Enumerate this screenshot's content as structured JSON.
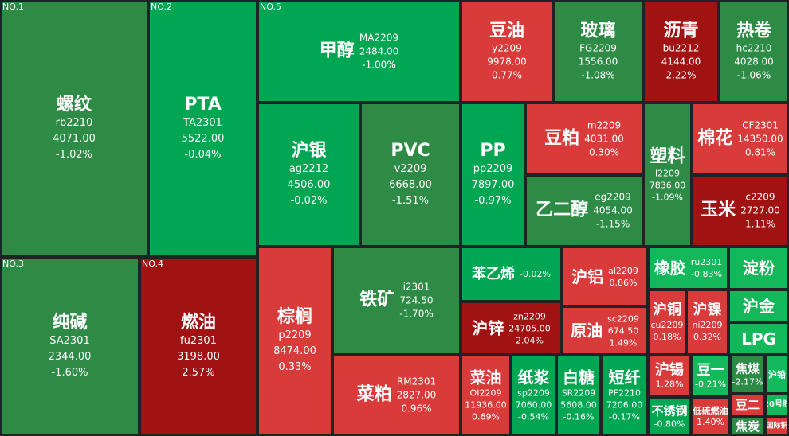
{
  "colors": {
    "up": "#d93b3b",
    "up_strong": "#a11212",
    "down": "#2e8b46",
    "down_bright": "#00a651",
    "down_light": "#12b85a",
    "background": "#1f2326"
  },
  "tiles": [
    {
      "rank": "NO.1",
      "name": "螺纹",
      "code": "rb2210",
      "price": "4071.00",
      "change": "-1.02%"
    },
    {
      "rank": "NO.2",
      "name": "PTA",
      "code": "TA2301",
      "price": "5522.00",
      "change": "-0.04%"
    },
    {
      "rank": "NO.3",
      "name": "纯碱",
      "code": "SA2301",
      "price": "2344.00",
      "change": "-1.60%"
    },
    {
      "rank": "NO.4",
      "name": "燃油",
      "code": "fu2301",
      "price": "3198.00",
      "change": "2.57%"
    },
    {
      "rank": "NO.5",
      "name": "甲醇",
      "code": "MA2209",
      "price": "2484.00",
      "change": "-1.00%"
    },
    {
      "name": "沪银",
      "code": "ag2212",
      "price": "4506.00",
      "change": "-0.02%"
    },
    {
      "name": "PVC",
      "code": "v2209",
      "price": "6668.00",
      "change": "-1.51%"
    },
    {
      "name": "PP",
      "code": "pp2209",
      "price": "7897.00",
      "change": "-0.97%"
    },
    {
      "name": "豆油",
      "code": "y2209",
      "price": "9978.00",
      "change": "0.77%"
    },
    {
      "name": "玻璃",
      "code": "FG2209",
      "price": "1556.00",
      "change": "-1.08%"
    },
    {
      "name": "沥青",
      "code": "bu2212",
      "price": "4144.00",
      "change": "2.22%"
    },
    {
      "name": "热卷",
      "code": "hc2210",
      "price": "4028.00",
      "change": "-1.06%"
    },
    {
      "name": "豆粕",
      "code": "m2209",
      "price": "4031.00",
      "change": "0.30%"
    },
    {
      "name": "塑料",
      "code": "l2209",
      "price": "7836.00",
      "change": "-1.09%"
    },
    {
      "name": "棉花",
      "code": "CF2301",
      "price": "14350.00",
      "change": "0.81%"
    },
    {
      "name": "乙二醇",
      "code": "eg2209",
      "price": "4054.00",
      "change": "-1.15%"
    },
    {
      "name": "玉米",
      "code": "c2209",
      "price": "2727.00",
      "change": "1.11%"
    },
    {
      "name": "棕榈",
      "code": "p2209",
      "price": "8474.00",
      "change": "0.33%"
    },
    {
      "name": "铁矿",
      "code": "i2301",
      "price": "724.50",
      "change": "-1.70%"
    },
    {
      "name": "菜粕",
      "code": "RM2301",
      "price": "2827.00",
      "change": "0.96%"
    },
    {
      "name": "苯乙烯",
      "change": "-0.02%"
    },
    {
      "name": "沪铝",
      "code": "al2209",
      "change": "0.86%"
    },
    {
      "name": "橡胶",
      "code": "ru2301",
      "change": "-0.83%"
    },
    {
      "name": "淀粉"
    },
    {
      "name": "沪锌",
      "code": "zn2209",
      "price": "24705.00",
      "change": "2.04%"
    },
    {
      "name": "原油",
      "code": "sc2209",
      "price": "674.50",
      "change": "1.49%"
    },
    {
      "name": "沪铜",
      "code": "cu2209",
      "change": "0.18%"
    },
    {
      "name": "沪镍",
      "code": "ni2209",
      "change": "0.32%"
    },
    {
      "name": "沪金"
    },
    {
      "name": "LPG"
    },
    {
      "name": "菜油",
      "code": "OI2209",
      "price": "11936.00",
      "change": "0.69%"
    },
    {
      "name": "纸浆",
      "code": "sp2209",
      "price": "7060.00",
      "change": "-0.54%"
    },
    {
      "name": "白糖",
      "code": "SR2209",
      "price": "5608.00",
      "change": "-0.16%"
    },
    {
      "name": "短纤",
      "code": "PF2210",
      "price": "7206.00",
      "change": "-0.17%"
    },
    {
      "name": "沪锡",
      "change": "1.28%"
    },
    {
      "name": "豆一",
      "change": "-0.21%"
    },
    {
      "name": "焦煤",
      "change": "-2.17%"
    },
    {
      "name": "沪铅"
    },
    {
      "name": "不锈钢",
      "change": "-0.80%"
    },
    {
      "name": "低硫燃油",
      "change": "1.40%"
    },
    {
      "name": "豆二"
    },
    {
      "name": "20号胶"
    },
    {
      "name": "焦炭"
    },
    {
      "name": "国际铜"
    }
  ]
}
